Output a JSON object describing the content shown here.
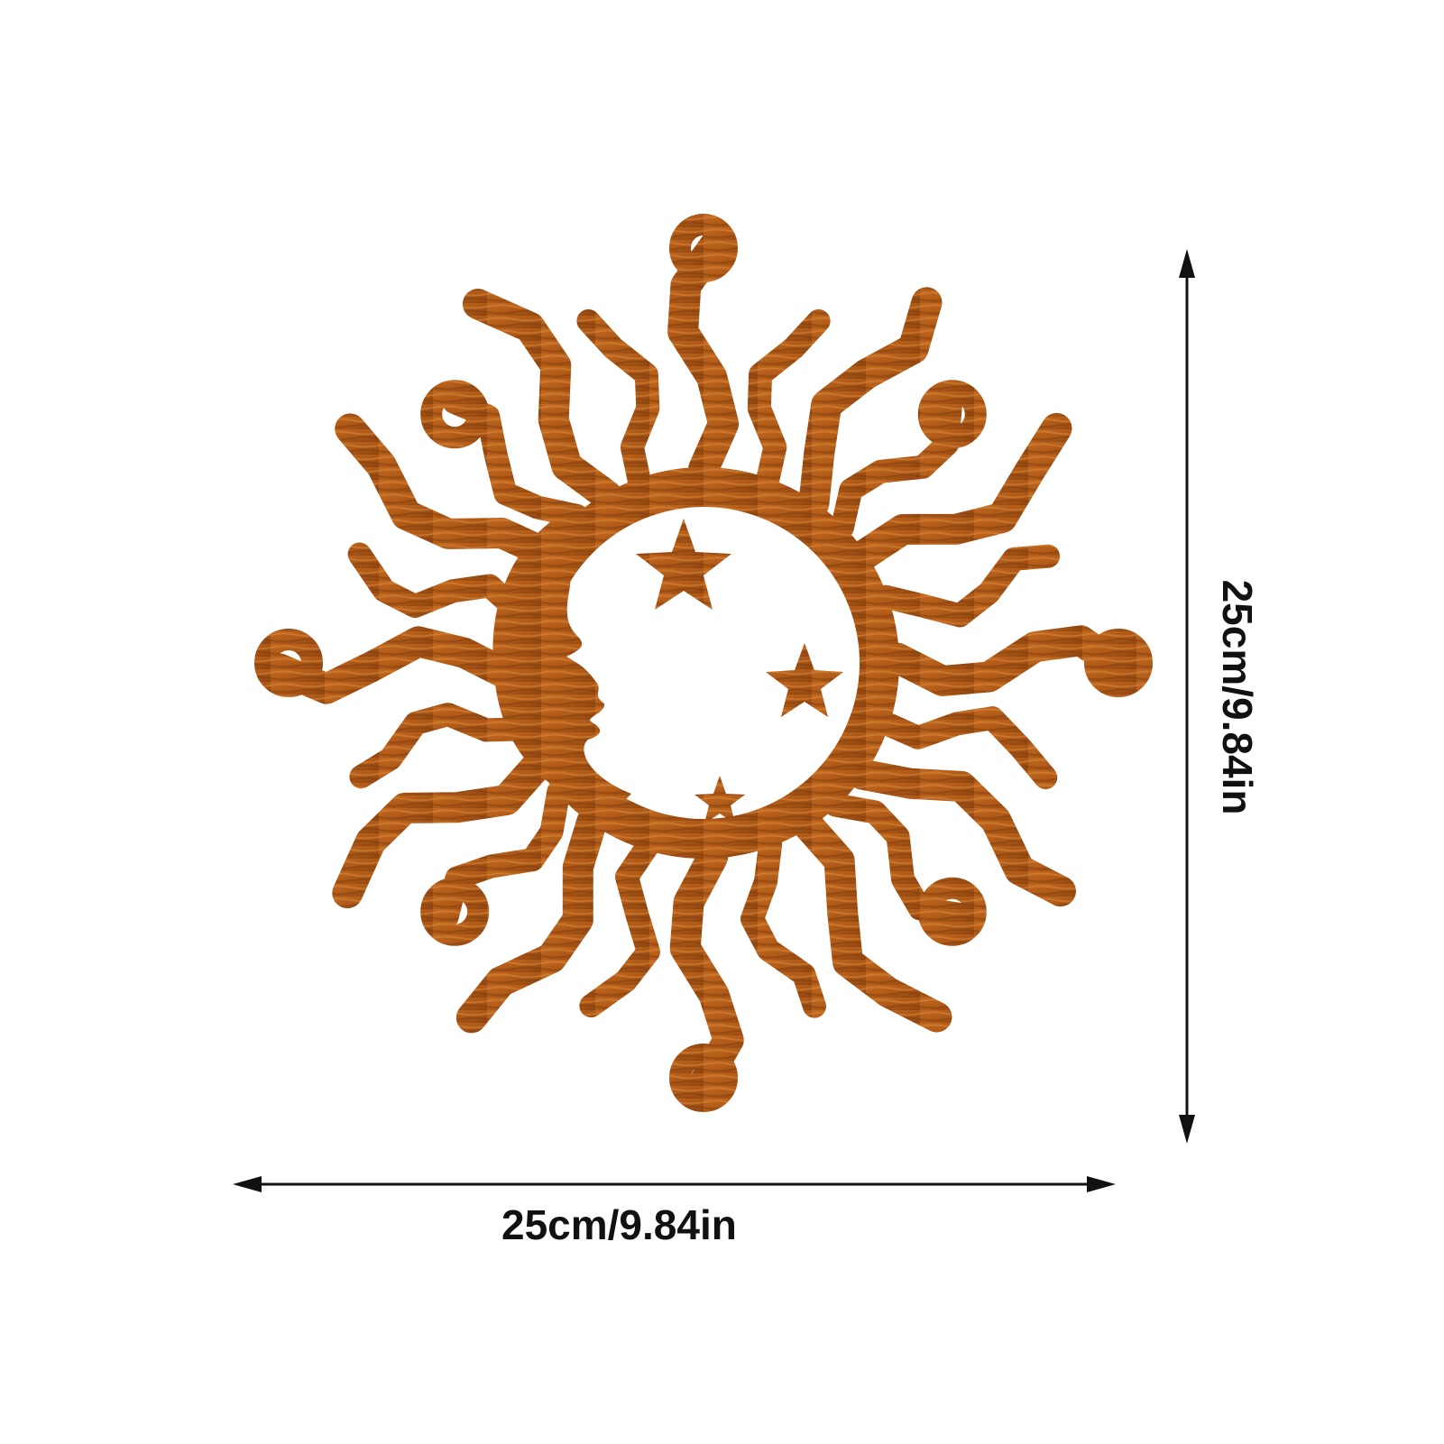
{
  "product": {
    "motif": "sun-moon-stars-wall-art",
    "material_color": "#b5611c",
    "highlight_color": "#e0943a",
    "shadow_color": "#7a3a0c"
  },
  "dimensions": {
    "width_label": "25cm/9.84in",
    "height_label": "25cm/9.84in",
    "arrow_color": "#111111"
  }
}
